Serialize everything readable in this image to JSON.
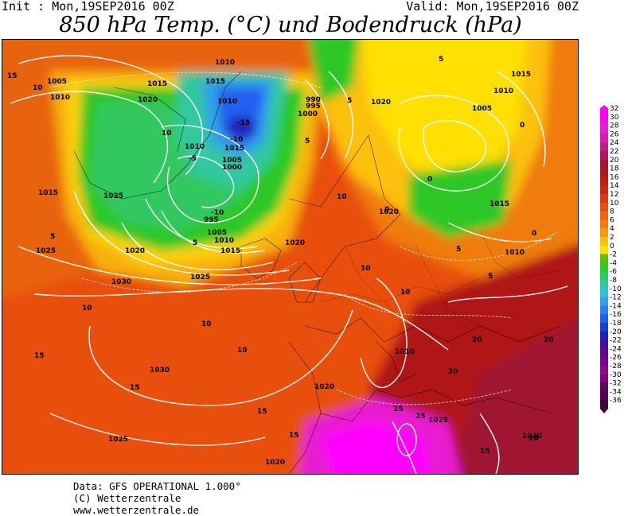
{
  "header": {
    "init": "Init : Mon,19SEP2016 00Z",
    "valid": "Valid: Mon,19SEP2016 00Z",
    "title": "850 hPa Temp. (°C) und Bodendruck (hPa)"
  },
  "credits": {
    "line1": "Data: GFS OPERATIONAL 1.000°",
    "line2": "(C) Wetterzentrale",
    "line3": "www.wetterzentrale.de"
  },
  "legend": {
    "labels": [
      "32",
      "30",
      "28",
      "26",
      "24",
      "22",
      "20",
      "18",
      "16",
      "14",
      "12",
      "10",
      "8",
      "6",
      "4",
      "2",
      "0",
      "-2",
      "-4",
      "-6",
      "-8",
      "-10",
      "-12",
      "-14",
      "-16",
      "-18",
      "-20",
      "-22",
      "-24",
      "-26",
      "-28",
      "-30",
      "-32",
      "-34",
      "-36"
    ],
    "colors": [
      "#ff00ff",
      "#f40ee8",
      "#e81cd0",
      "#d81cb0",
      "#c81890",
      "#b01860",
      "#a01830",
      "#b01818",
      "#c02010",
      "#d02810",
      "#e03810",
      "#e85010",
      "#f06410",
      "#f47c10",
      "#f89a10",
      "#fcc010",
      "#ffe000",
      "#5ec000",
      "#2ec828",
      "#30c860",
      "#30c8a0",
      "#30c0d8",
      "#30a0e8",
      "#3080f0",
      "#2060f0",
      "#1840d0",
      "#2020b8",
      "#4010a0",
      "#600890",
      "#800090",
      "#900890",
      "#800080",
      "#600060",
      "#500050",
      "#400040"
    ]
  },
  "map": {
    "isobar_labels": [
      "1005",
      "1010",
      "1015",
      "1020",
      "1010",
      "1015",
      "1010",
      "990",
      "995",
      "1000",
      "1020",
      "1015",
      "1010",
      "1005",
      "1010",
      "1015",
      "1005",
      "1000",
      "995",
      "1005",
      "1010",
      "1015",
      "1025",
      "1015",
      "1020",
      "1025",
      "1030",
      "1025",
      "1020",
      "1030",
      "1025",
      "1020",
      "1010",
      "1020",
      "1015",
      "1010",
      "1030",
      "1025",
      "1020"
    ],
    "temp_labels": [
      "15",
      "10",
      "-5",
      "-10",
      "-15",
      "-10",
      "5",
      "0",
      "5",
      "5",
      "0",
      "0",
      "10",
      "10",
      "15",
      "15",
      "20",
      "20",
      "5",
      "10",
      "5",
      "0",
      "5",
      "10",
      "15",
      "10",
      "5",
      "10",
      "20",
      "25",
      "25",
      "20",
      "10",
      "15",
      "15"
    ]
  }
}
